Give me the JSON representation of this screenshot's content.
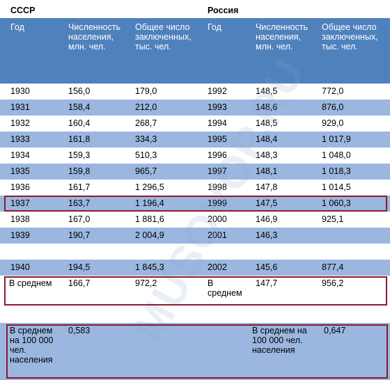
{
  "region_labels": {
    "ussr": "СССР",
    "russia": "Россия"
  },
  "headers": {
    "year": "Год",
    "population": "Численность\nнаселения,\nмлн. чел.",
    "prisoners": "Общее число\nзаключенных,\nтыс. чел."
  },
  "rows": [
    {
      "y1": "1930",
      "p1": "156,0",
      "z1": "179,0",
      "y2": "1992",
      "p2": "148,5",
      "z2": "772,0"
    },
    {
      "y1": "1931",
      "p1": "158,4",
      "z1": "212,0",
      "y2": "1993",
      "p2": "148,6",
      "z2": "876,0"
    },
    {
      "y1": "1932",
      "p1": "160,4",
      "z1": "268,7",
      "y2": "1994",
      "p2": "148,5",
      "z2": "929,0"
    },
    {
      "y1": "1933",
      "p1": "161,8",
      "z1": "334,3",
      "y2": "1995",
      "p2": "148,4",
      "z2": "1 017,9"
    },
    {
      "y1": "1934",
      "p1": "159,3",
      "z1": "510,3",
      "y2": "1996",
      "p2": "148,3",
      "z2": "1 048,0"
    },
    {
      "y1": "1935",
      "p1": "159,8",
      "z1": "965,7",
      "y2": "1997",
      "p2": "148,1",
      "z2": "1 018,3"
    },
    {
      "y1": "1936",
      "p1": "161,7",
      "z1": "1 296,5",
      "y2": "1998",
      "p2": "147,8",
      "z2": "1 014,5"
    },
    {
      "y1": "1937",
      "p1": "163,7",
      "z1": "1 196,4",
      "y2": "1999",
      "p2": "147,5",
      "z2": "1 060,3"
    },
    {
      "y1": "1938",
      "p1": "167,0",
      "z1": "1 881,6",
      "y2": "2000",
      "p2": "146,9",
      "z2": "925,1"
    },
    {
      "y1": "1939",
      "p1": "190,7",
      "z1": "2 004,9",
      "y2": "2001",
      "p2": "146,3",
      "z2": ""
    },
    {
      "y1": "",
      "p1": "",
      "z1": "",
      "y2": "",
      "p2": "",
      "z2": ""
    },
    {
      "y1": "1940",
      "p1": "194,5",
      "z1": "1 845,3",
      "y2": "2002",
      "p2": "145,6",
      "z2": "877,4"
    }
  ],
  "average": {
    "label1": "В среднем",
    "p1": "166,7",
    "z1": "972,2",
    "label2": "В\nсреднем",
    "p2": "147,7",
    "z2": "956,2"
  },
  "per100k": {
    "label1": "В среднем\nна 100 000\nчел.\nнаселения",
    "value1": "0,583",
    "label2": "В среднем на\n100 000 чел.\nнаселения",
    "value2": "0,647"
  },
  "watermark": "MUSOVOP.RU",
  "colors": {
    "header_bg": "#4f81bd",
    "stripe": "#9bb7e0",
    "highlight_border": "#8b1a2e"
  }
}
